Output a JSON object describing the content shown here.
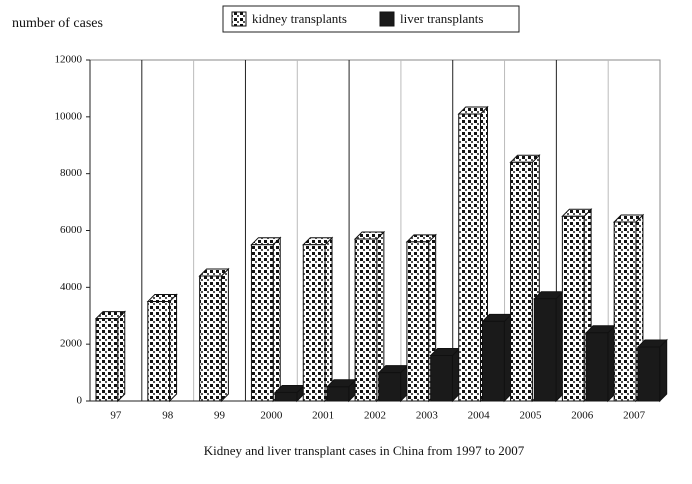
{
  "chart_data": {
    "type": "bar",
    "title": "Kidney and liver transplant cases in China from 1997 to 2007",
    "y_label": "number of cases",
    "categories": [
      "97",
      "98",
      "99",
      "2000",
      "2001",
      "2002",
      "2003",
      "2004",
      "2005",
      "2006",
      "2007"
    ],
    "series": [
      {
        "name": "kidney transplants",
        "color": "dotted",
        "values": [
          2900,
          3500,
          4400,
          5500,
          5500,
          5700,
          5600,
          10100,
          8400,
          6500,
          6300
        ]
      },
      {
        "name": "liver transplants",
        "color": "#1a1a1a",
        "values": [
          null,
          null,
          null,
          300,
          500,
          1000,
          1600,
          2800,
          3600,
          2400,
          1900
        ]
      }
    ],
    "ylim": [
      0,
      12000
    ],
    "yticks": [
      0,
      2000,
      4000,
      6000,
      8000,
      10000,
      12000
    ]
  }
}
